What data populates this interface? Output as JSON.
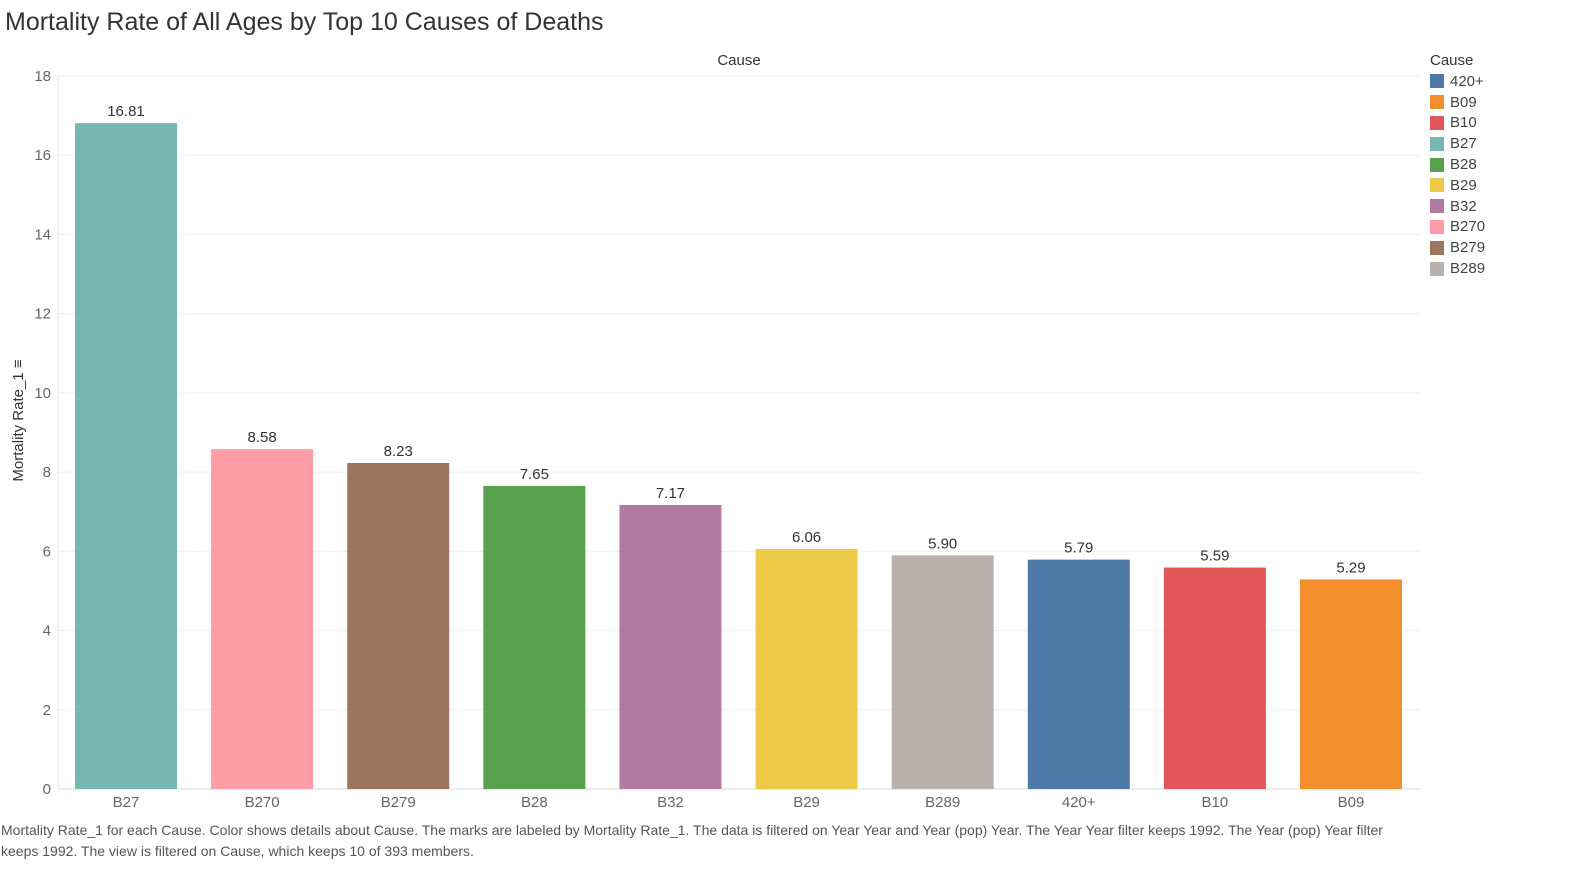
{
  "chart_data": {
    "type": "bar",
    "title": "Mortality Rate of All Ages by Top 10 Causes of Deaths",
    "header": "Cause",
    "ylabel": "Mortality Rate_1 ≡",
    "ylim": [
      0,
      18
    ],
    "yticks": [
      0,
      2,
      4,
      6,
      8,
      10,
      12,
      14,
      16,
      18
    ],
    "grid": true,
    "categories": [
      "B27",
      "B270",
      "B279",
      "B28",
      "B32",
      "B29",
      "B289",
      "420+",
      "B10",
      "B09"
    ],
    "values": [
      16.81,
      8.58,
      8.23,
      7.65,
      7.17,
      6.06,
      5.9,
      5.79,
      5.59,
      5.29
    ],
    "value_labels": [
      "16.81",
      "8.58",
      "8.23",
      "7.65",
      "7.17",
      "6.06",
      "5.90",
      "5.79",
      "5.59",
      "5.29"
    ],
    "colors": {
      "420+": "#4e79a7",
      "B09": "#f28e2b",
      "B10": "#e15759",
      "B27": "#76b7b2",
      "B28": "#59a14f",
      "B29": "#edc948",
      "B32": "#b07aa1",
      "B270": "#ff9da7",
      "B279": "#9c755f",
      "B289": "#bab0ac"
    },
    "legend": {
      "title": "Cause",
      "placement": "right",
      "items": [
        "420+",
        "B09",
        "B10",
        "B27",
        "B28",
        "B29",
        "B32",
        "B270",
        "B279",
        "B289"
      ]
    }
  },
  "caption": "Mortality Rate_1 for each Cause.  Color shows details about Cause.  The marks are labeled by Mortality Rate_1. The data is filtered on Year Year and Year (pop) Year. The Year Year filter keeps 1992. The Year (pop) Year filter keeps 1992. The view is filtered on Cause, which keeps 10 of 393 members."
}
